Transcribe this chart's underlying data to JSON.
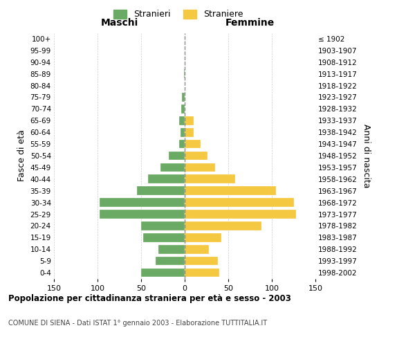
{
  "age_groups": [
    "100+",
    "95-99",
    "90-94",
    "85-89",
    "80-84",
    "75-79",
    "70-74",
    "65-69",
    "60-64",
    "55-59",
    "50-54",
    "45-49",
    "40-44",
    "35-39",
    "30-34",
    "25-29",
    "20-24",
    "15-19",
    "10-14",
    "5-9",
    "0-4"
  ],
  "birth_years": [
    "≤ 1902",
    "1903-1907",
    "1908-1912",
    "1913-1917",
    "1918-1922",
    "1923-1927",
    "1928-1932",
    "1933-1937",
    "1938-1942",
    "1943-1947",
    "1948-1952",
    "1953-1957",
    "1958-1962",
    "1963-1967",
    "1968-1972",
    "1973-1977",
    "1978-1982",
    "1983-1987",
    "1988-1992",
    "1993-1997",
    "1998-2002"
  ],
  "maschi": [
    0,
    0,
    0,
    1,
    0,
    3,
    4,
    6,
    5,
    6,
    18,
    28,
    42,
    55,
    98,
    98,
    50,
    48,
    30,
    33,
    50
  ],
  "femmine": [
    0,
    0,
    0,
    0,
    0,
    0,
    0,
    10,
    10,
    18,
    26,
    35,
    58,
    105,
    125,
    128,
    88,
    42,
    28,
    38,
    40
  ],
  "maschi_color": "#6aaa64",
  "femmine_color": "#f5c842",
  "background_color": "#ffffff",
  "grid_color": "#cccccc",
  "title": "Popolazione per cittadinanza straniera per età e sesso - 2003",
  "subtitle": "COMUNE DI SIENA - Dati ISTAT 1° gennaio 2003 - Elaborazione TUTTITALIA.IT",
  "xlabel_left": "Maschi",
  "xlabel_right": "Femmine",
  "ylabel_left": "Fasce di età",
  "ylabel_right": "Anni di nascita",
  "legend_stranieri": "Stranieri",
  "legend_straniere": "Straniere",
  "xlim": 150
}
